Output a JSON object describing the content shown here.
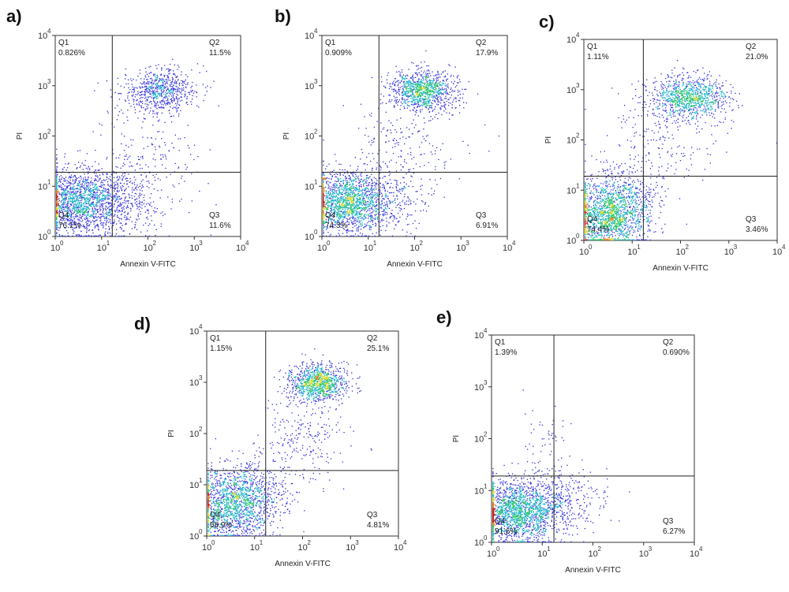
{
  "chart_data": [
    {
      "type": "scatter",
      "panel_label": "a)",
      "xlabel": "Annexin V-FITC",
      "ylabel": "PI",
      "x_scale": "log",
      "y_scale": "log",
      "xlim": [
        1,
        10000
      ],
      "ylim": [
        1,
        10000
      ],
      "x_ticks": [
        "10",
        "10",
        "10",
        "10",
        "10"
      ],
      "x_tick_exponents": [
        "0",
        "1",
        "2",
        "3",
        "4"
      ],
      "y_ticks": [
        "10",
        "10",
        "10",
        "10",
        "10"
      ],
      "y_tick_exponents": [
        "0",
        "1",
        "2",
        "3",
        "4"
      ],
      "gate": {
        "x": 17,
        "y": 19
      },
      "quadrants": [
        {
          "name": "Q1",
          "value": "0.826%"
        },
        {
          "name": "Q2",
          "value": "11.5%"
        },
        {
          "name": "Q3",
          "value": "11.6%"
        },
        {
          "name": "Q4",
          "value": "76.1%"
        }
      ],
      "clusters": [
        {
          "x": 3,
          "y": 5,
          "sx": 0.5,
          "sy": 0.32,
          "n": 1700
        },
        {
          "x": 25,
          "y": 5,
          "sx": 0.45,
          "sy": 0.3,
          "n": 350
        },
        {
          "x": 180,
          "y": 800,
          "sx": 0.4,
          "sy": 0.22,
          "n": 700
        },
        {
          "x": 80,
          "y": 40,
          "sx": 0.6,
          "sy": 0.5,
          "n": 220
        }
      ]
    },
    {
      "type": "scatter",
      "panel_label": "b)",
      "xlabel": "Annexin V-FITC",
      "ylabel": "PI",
      "x_scale": "log",
      "y_scale": "log",
      "xlim": [
        1,
        10000
      ],
      "ylim": [
        1,
        10000
      ],
      "x_ticks": [
        "10",
        "10",
        "10",
        "10",
        "10"
      ],
      "x_tick_exponents": [
        "0",
        "1",
        "2",
        "3",
        "4"
      ],
      "y_ticks": [
        "10",
        "10",
        "10",
        "10",
        "10"
      ],
      "y_tick_exponents": [
        "0",
        "1",
        "2",
        "3",
        "4"
      ],
      "gate": {
        "x": 17,
        "y": 19
      },
      "quadrants": [
        {
          "name": "Q1",
          "value": "0.909%"
        },
        {
          "name": "Q2",
          "value": "17.9%"
        },
        {
          "name": "Q3",
          "value": "6.91%"
        },
        {
          "name": "Q4",
          "value": "74.3%"
        }
      ],
      "clusters": [
        {
          "x": 3,
          "y": 5,
          "sx": 0.45,
          "sy": 0.3,
          "n": 1600
        },
        {
          "x": 20,
          "y": 5,
          "sx": 0.45,
          "sy": 0.28,
          "n": 300
        },
        {
          "x": 150,
          "y": 800,
          "sx": 0.35,
          "sy": 0.2,
          "n": 1000
        },
        {
          "x": 60,
          "y": 60,
          "sx": 0.6,
          "sy": 0.5,
          "n": 220
        }
      ]
    },
    {
      "type": "scatter",
      "panel_label": "c)",
      "xlabel": "Annexin V-FITC",
      "ylabel": "PI",
      "x_scale": "log",
      "y_scale": "log",
      "xlim": [
        1,
        10000
      ],
      "ylim": [
        1,
        10000
      ],
      "x_ticks": [
        "10",
        "10",
        "10",
        "10",
        "10"
      ],
      "x_tick_exponents": [
        "0",
        "1",
        "2",
        "3",
        "4"
      ],
      "y_ticks": [
        "10",
        "10",
        "10",
        "10",
        "10"
      ],
      "y_tick_exponents": [
        "0",
        "1",
        "2",
        "3",
        "4"
      ],
      "gate": {
        "x": 17,
        "y": 19
      },
      "quadrants": [
        {
          "name": "Q1",
          "value": "1.11%"
        },
        {
          "name": "Q2",
          "value": "21.0%"
        },
        {
          "name": "Q3",
          "value": "3.46%"
        },
        {
          "name": "Q4",
          "value": "74.4%"
        }
      ],
      "clusters": [
        {
          "x": 3,
          "y": 3,
          "sx": 0.4,
          "sy": 0.35,
          "n": 1500
        },
        {
          "x": 8,
          "y": 8,
          "sx": 0.35,
          "sy": 0.35,
          "n": 350
        },
        {
          "x": 150,
          "y": 700,
          "sx": 0.4,
          "sy": 0.22,
          "n": 1000
        },
        {
          "x": 40,
          "y": 100,
          "sx": 0.6,
          "sy": 0.5,
          "n": 200
        }
      ]
    },
    {
      "type": "scatter",
      "panel_label": "d)",
      "xlabel": "Annexin V-FITC",
      "ylabel": "PI",
      "x_scale": "log",
      "y_scale": "log",
      "xlim": [
        1,
        10000
      ],
      "ylim": [
        1,
        10000
      ],
      "x_ticks": [
        "10",
        "10",
        "10",
        "10",
        "10"
      ],
      "x_tick_exponents": [
        "0",
        "1",
        "2",
        "3",
        "4"
      ],
      "y_ticks": [
        "10",
        "10",
        "10",
        "10",
        "10"
      ],
      "y_tick_exponents": [
        "0",
        "1",
        "2",
        "3",
        "4"
      ],
      "gate": {
        "x": 17,
        "y": 19
      },
      "quadrants": [
        {
          "name": "Q1",
          "value": "1.15%"
        },
        {
          "name": "Q2",
          "value": "25.1%"
        },
        {
          "name": "Q3",
          "value": "4.81%"
        },
        {
          "name": "Q4",
          "value": "68.9%"
        }
      ],
      "clusters": [
        {
          "x": 3,
          "y": 4,
          "sx": 0.45,
          "sy": 0.35,
          "n": 1500
        },
        {
          "x": 10,
          "y": 8,
          "sx": 0.35,
          "sy": 0.35,
          "n": 300
        },
        {
          "x": 200,
          "y": 1000,
          "sx": 0.3,
          "sy": 0.18,
          "n": 1000
        },
        {
          "x": 100,
          "y": 80,
          "sx": 0.45,
          "sy": 0.45,
          "n": 250
        }
      ]
    },
    {
      "type": "scatter",
      "panel_label": "e)",
      "xlabel": "Annexin V-FITC",
      "ylabel": "PI",
      "x_scale": "log",
      "y_scale": "log",
      "xlim": [
        1,
        10000
      ],
      "ylim": [
        1,
        10000
      ],
      "x_ticks": [
        "10",
        "10",
        "10",
        "10",
        "10"
      ],
      "x_tick_exponents": [
        "0",
        "1",
        "2",
        "3",
        "4"
      ],
      "y_ticks": [
        "10",
        "10",
        "10",
        "10",
        "10"
      ],
      "y_tick_exponents": [
        "0",
        "1",
        "2",
        "3",
        "4"
      ],
      "gate": {
        "x": 17,
        "y": 19
      },
      "quadrants": [
        {
          "name": "Q1",
          "value": "1.39%"
        },
        {
          "name": "Q2",
          "value": "0.690%"
        },
        {
          "name": "Q3",
          "value": "6.27%"
        },
        {
          "name": "Q4",
          "value": "91.6%"
        }
      ],
      "clusters": [
        {
          "x": 3,
          "y": 4,
          "sx": 0.45,
          "sy": 0.3,
          "n": 1800
        },
        {
          "x": 20,
          "y": 6,
          "sx": 0.45,
          "sy": 0.28,
          "n": 350
        },
        {
          "x": 12,
          "y": 80,
          "sx": 0.25,
          "sy": 0.4,
          "n": 60
        }
      ]
    }
  ],
  "colors": {
    "sparse": "#2b2bd6",
    "dense": [
      "#3a3ae0",
      "#1fb4c8",
      "#2cc46a",
      "#d8d820",
      "#e07a1a",
      "#c81e1e"
    ]
  }
}
